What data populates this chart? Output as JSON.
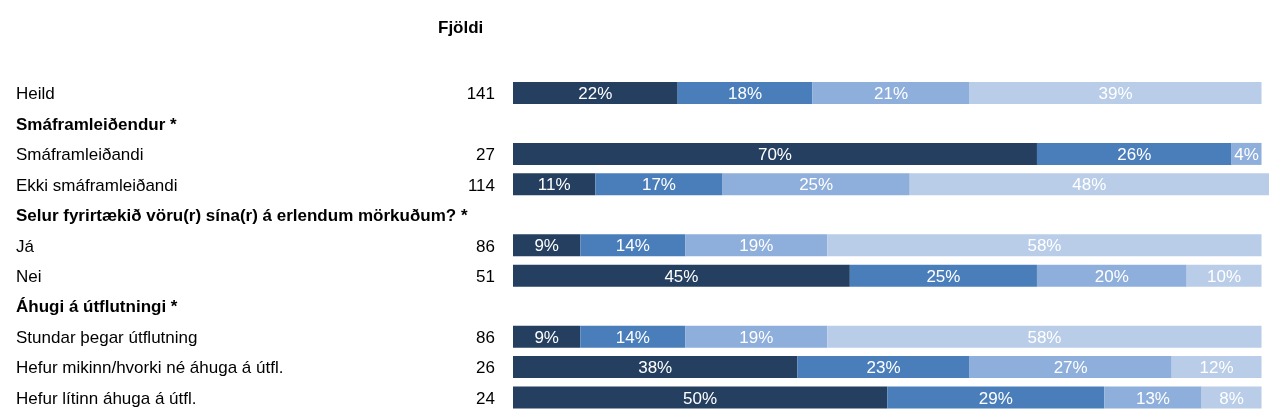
{
  "chart_data": {
    "type": "bar",
    "orientation": "horizontal",
    "stacked": true,
    "categories": [
      "Heild",
      "Smáframleiðendur *",
      "Smáframleiðandi",
      "Ekki smáframleiðandi",
      "Selur fyrirtækið vöru(r) sína(r) á erlendum mörkuðum? *",
      "Já",
      "Nei",
      "Áhugi á útflutningi *",
      "Stundar þegar útflutning",
      "Hefur mikinn/hvorki né áhuga á útfl.",
      "Hefur lítinn áhuga á útfl."
    ],
    "series": [
      {
        "color": "#243f60",
        "values": [
          22,
          null,
          70,
          11,
          null,
          9,
          45,
          null,
          9,
          38,
          50
        ],
        "value_labels": [
          "22%",
          null,
          "70%",
          "11%",
          null,
          "9%",
          "45%",
          null,
          "9%",
          "38%",
          "50%"
        ]
      },
      {
        "color": "#4a7ebb",
        "values": [
          18,
          null,
          26,
          17,
          null,
          14,
          25,
          null,
          14,
          23,
          29
        ],
        "value_labels": [
          "18%",
          null,
          "26%",
          "17%",
          null,
          "14%",
          "25%",
          null,
          "14%",
          "23%",
          "29%"
        ]
      },
      {
        "color": "#8eaedb",
        "values": [
          21,
          null,
          4,
          25,
          null,
          19,
          20,
          null,
          19,
          27,
          13
        ],
        "value_labels": [
          "21%",
          null,
          "4%",
          "25%",
          null,
          "19%",
          "20%",
          null,
          "19%",
          "27%",
          "13%"
        ]
      },
      {
        "color": "#b9cde8",
        "values": [
          39,
          null,
          null,
          48,
          null,
          58,
          10,
          null,
          58,
          12,
          8
        ],
        "value_labels": [
          "39%",
          null,
          null,
          "48%",
          null,
          "58%",
          "10%",
          null,
          "58%",
          "12%",
          "8%"
        ]
      }
    ],
    "xlim": [
      0,
      101
    ],
    "tick_labels": "y",
    "grid": false,
    "legend": false,
    "annotations": [
      "Fjöldi",
      "141",
      "27",
      "114",
      "86",
      "51",
      "86",
      "26",
      "24"
    ]
  }
}
